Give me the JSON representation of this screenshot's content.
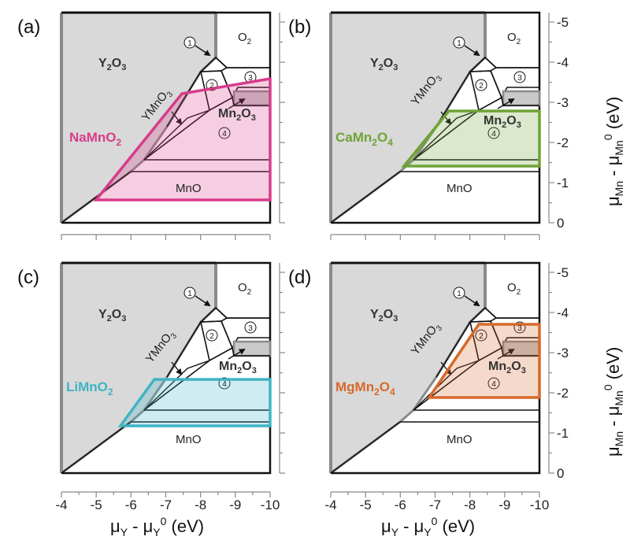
{
  "colors": {
    "y2o3_fill": "#d9d9d9",
    "gray_stroke": "#8a8a8a",
    "NaMnO2": "#d83c8a",
    "CaMn2O4": "#6fa336",
    "LiMnO2": "#3fb3c4",
    "MgMn2O4": "#d7692b"
  },
  "axes": {
    "x_title_main": "μ",
    "x_title_sub1": "Y",
    "x_title_mid": " - μ",
    "x_title_sub2": "Y",
    "x_title_sup": "0",
    "x_title_unit": " (eV)",
    "y_title_main": "μ",
    "y_title_sub1": "Mn",
    "y_title_mid": " - μ",
    "y_title_sub2": "Mn",
    "y_title_sup": "0",
    "y_title_unit": " (eV)",
    "x_ticks": [
      "-4",
      "-5",
      "-6",
      "-7",
      "-8",
      "-9",
      "-10"
    ],
    "y_ticks": [
      "-5",
      "-4",
      "-3",
      "-2",
      "-1",
      "0"
    ]
  },
  "phases": {
    "y2o3_main": "Y",
    "y2o3_sub": "2",
    "y2o3_end": "O",
    "y2o3_sub2": "3",
    "o2_main": "O",
    "o2_sub": "2",
    "ymno3_main": "YMnO",
    "ymno3_sub": "3",
    "mn2o3_a": "Mn",
    "mn2o3_sub": "2",
    "mn2o3_b": "O",
    "mn2o3_sub2": "3",
    "mno": "MnO",
    "region1": "1",
    "region2": "2",
    "region3": "3",
    "region4": "4"
  },
  "panels": [
    {
      "letter": "(a)",
      "compound_main": "NaMnO",
      "compound_sub": "2",
      "compound_tail": "",
      "compound_tail_sub": ""
    },
    {
      "letter": "(b)",
      "compound_main": "CaMn",
      "compound_sub": "2",
      "compound_tail": "O",
      "compound_tail_sub": "4"
    },
    {
      "letter": "(c)",
      "compound_main": "LiMnO",
      "compound_sub": "2",
      "compound_tail": "",
      "compound_tail_sub": ""
    },
    {
      "letter": "(d)",
      "compound_main": "MgMn",
      "compound_sub": "2",
      "compound_tail": "O",
      "compound_tail_sub": "4"
    }
  ]
}
